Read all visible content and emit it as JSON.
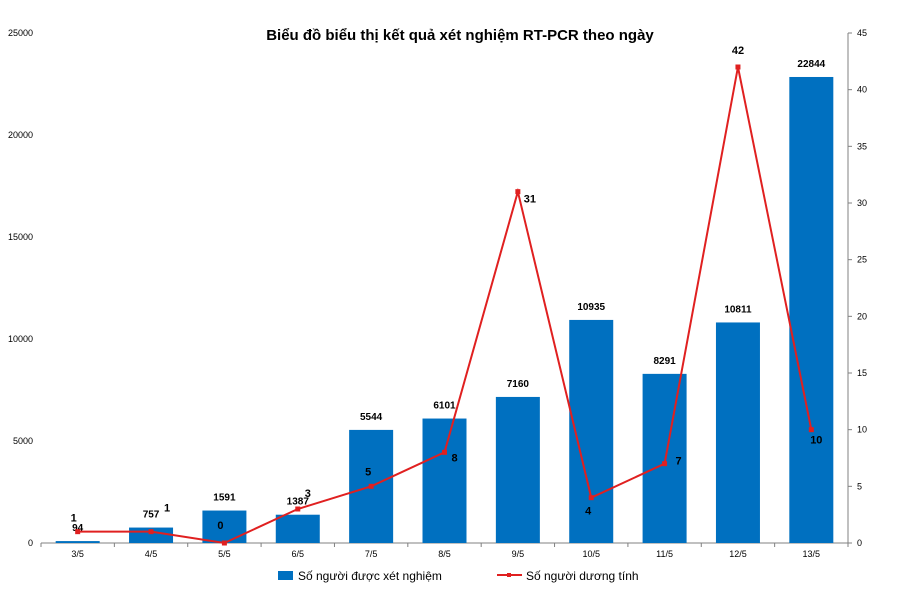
{
  "chart_data": {
    "type": "bar+line",
    "title": "Biểu đồ biểu thị kết quả xét nghiệm RT-PCR theo ngày",
    "categories": [
      "3/5",
      "4/5",
      "5/5",
      "6/5",
      "7/5",
      "8/5",
      "9/5",
      "10/5",
      "11/5",
      "12/5",
      "13/5"
    ],
    "series": [
      {
        "name": "Số người được xét nghiệm",
        "type": "bar",
        "axis": "left",
        "color": "#0070c0",
        "values": [
          94,
          757,
          1591,
          1387,
          5544,
          6101,
          7160,
          10935,
          8291,
          10811,
          22844
        ]
      },
      {
        "name": "Số người dương tính",
        "type": "line",
        "axis": "right",
        "color": "#e02020",
        "marker_color": "#e02020",
        "values": [
          1,
          1,
          0,
          3,
          5,
          8,
          31,
          4,
          7,
          42,
          10
        ]
      }
    ],
    "y_left": {
      "min": 0,
      "max": 25000,
      "ticks": [
        "0",
        "5000",
        "10000",
        "15000",
        "20000",
        "25000"
      ]
    },
    "y_right": {
      "min": 0,
      "max": 45,
      "ticks": [
        "0",
        "5",
        "10",
        "15",
        "20",
        "25",
        "30",
        "35",
        "40",
        "45"
      ]
    },
    "legend_position": "bottom",
    "grid": false
  }
}
